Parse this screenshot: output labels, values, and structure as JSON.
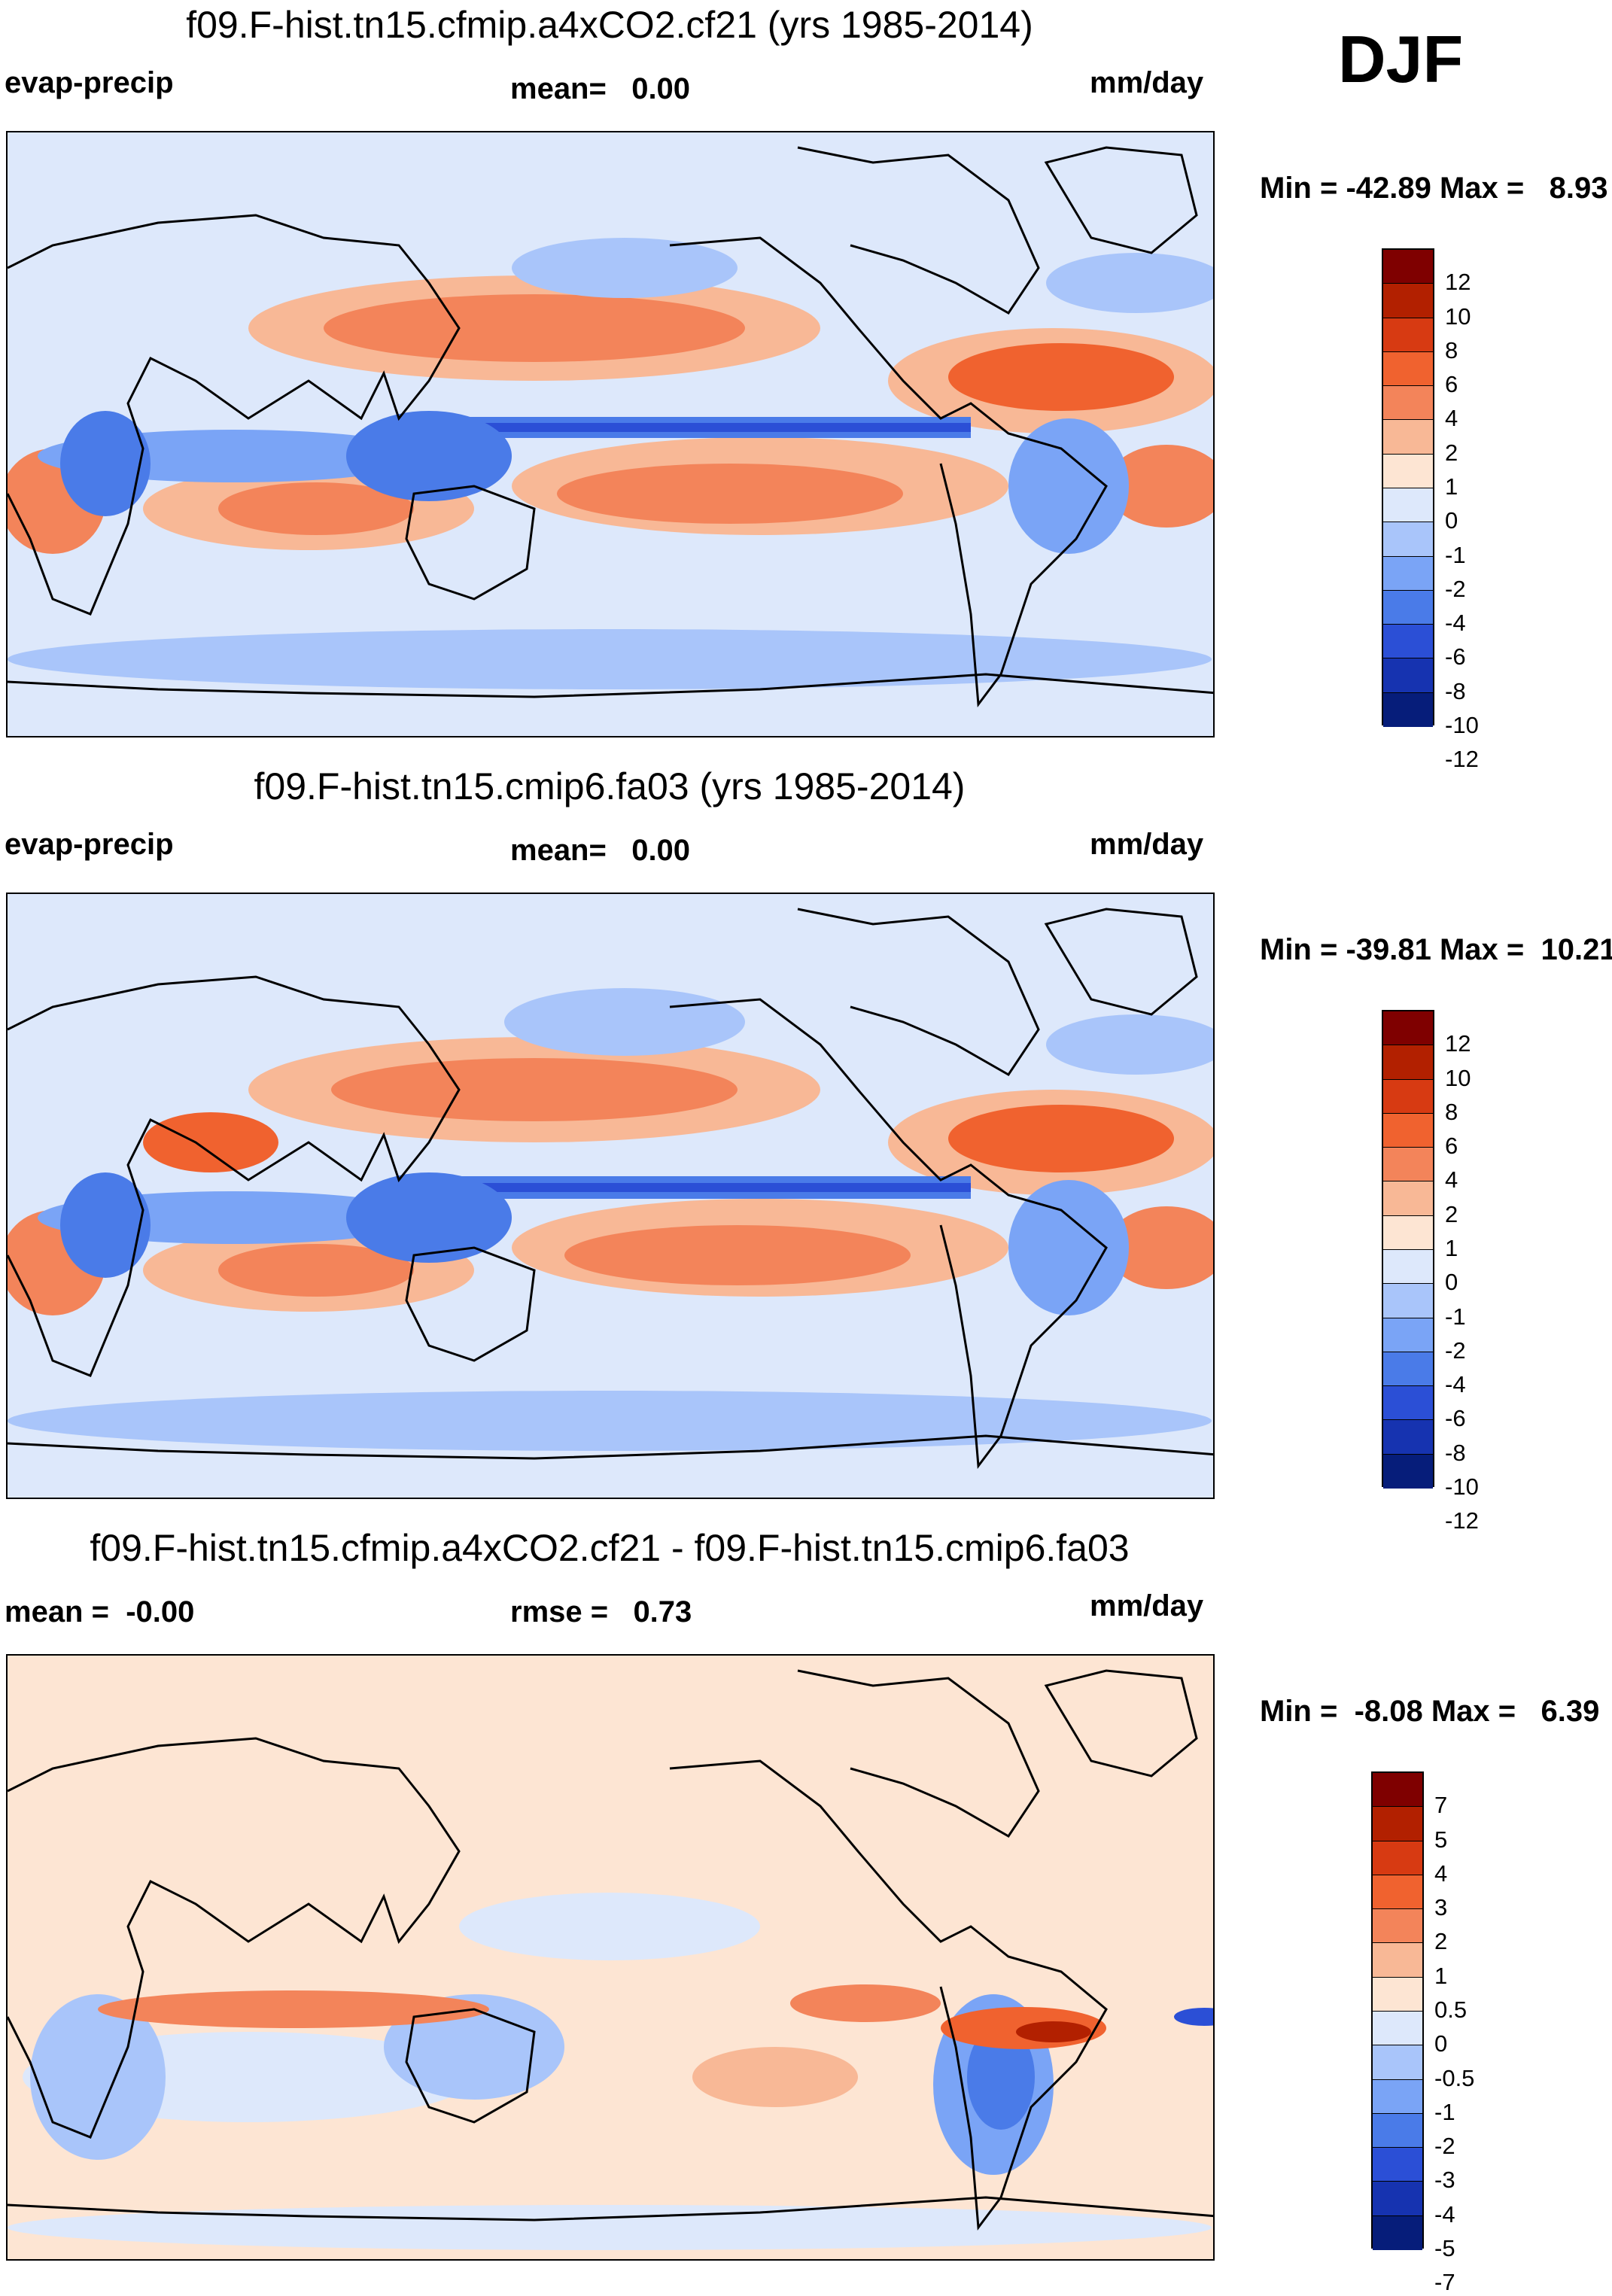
{
  "season": "DJF",
  "palette": {
    "diverging_12": [
      "#7f0000",
      "#b22000",
      "#d73a12",
      "#f0622f",
      "#f3845a",
      "#f8b896",
      "#fde5d3",
      "#dde8fb",
      "#a9c5fa",
      "#7aa4f6",
      "#4a7be8",
      "#2b4fd6",
      "#1633b0",
      "#061d7a"
    ],
    "diverging_7": [
      "#7f0000",
      "#b22000",
      "#d73a12",
      "#f0622f",
      "#f3845a",
      "#f8b896",
      "#fde5d3",
      "#dde8fb",
      "#a9c5fa",
      "#7aa4f6",
      "#4a7be8",
      "#2b4fd6",
      "#1633b0",
      "#061d7a"
    ]
  },
  "panels": [
    {
      "title": "f09.F-hist.tn15.cfmip.a4xCO2.cf21 (yrs 1985-2014)",
      "left_label": "evap-precip",
      "center_label": "mean=   0.00",
      "right_label": "mm/day",
      "minmax": "Min = -42.89 Max =   8.93",
      "colorbar_ticks": [
        "12",
        "10",
        "8",
        "6",
        "4",
        "2",
        "1",
        "0",
        "-1",
        "-2",
        "-4",
        "-6",
        "-8",
        "-10",
        "-12"
      ]
    },
    {
      "title": "f09.F-hist.tn15.cmip6.fa03 (yrs 1985-2014)",
      "left_label": "evap-precip",
      "center_label": "mean=   0.00",
      "right_label": "mm/day",
      "minmax": "Min = -39.81 Max =  10.21",
      "colorbar_ticks": [
        "12",
        "10",
        "8",
        "6",
        "4",
        "2",
        "1",
        "0",
        "-1",
        "-2",
        "-4",
        "-6",
        "-8",
        "-10",
        "-12"
      ]
    },
    {
      "title": "f09.F-hist.tn15.cfmip.a4xCO2.cf21 - f09.F-hist.tn15.cmip6.fa03",
      "left_label": "mean =  -0.00",
      "center_label": "rmse =   0.73",
      "right_label": "mm/day",
      "minmax": "Min =  -8.08 Max =   6.39",
      "colorbar_ticks": [
        "7",
        "5",
        "4",
        "3",
        "2",
        "1",
        "0.5",
        "0",
        "-0.5",
        "-1",
        "-2",
        "-3",
        "-4",
        "-5",
        "-7"
      ]
    }
  ]
}
